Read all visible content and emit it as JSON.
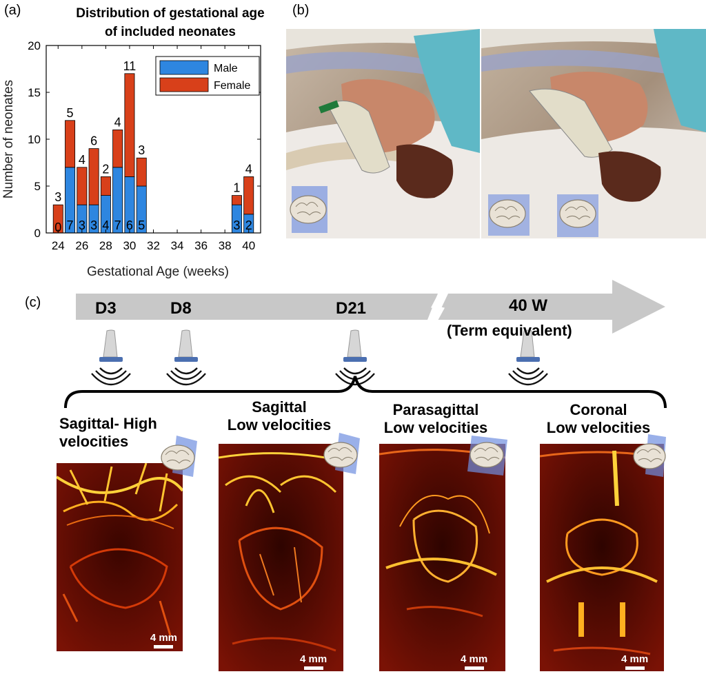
{
  "panel_a": {
    "letter": "(a)",
    "title_line1": "Distribution of gestational age",
    "title_line2": "of included neonates"
  },
  "panel_b": {
    "letter": "(b)"
  },
  "panel_c": {
    "letter": "(c)",
    "timeline": {
      "labels": [
        "D3",
        "D8",
        "D21",
        "40 W"
      ],
      "term_note": "(Term equivalent)"
    },
    "views": [
      {
        "title_line1": "Sagittal- High",
        "title_line2": "velocities",
        "scale": "4 mm"
      },
      {
        "title_line1": "Sagittal",
        "title_line2": "Low velocities",
        "scale": "4 mm"
      },
      {
        "title_line1": "Parasagittal",
        "title_line2": "Low velocities",
        "scale": "4 mm"
      },
      {
        "title_line1": "Coronal",
        "title_line2": "Low velocities",
        "scale": "4 mm"
      }
    ]
  },
  "chart_data": {
    "type": "bar",
    "stacked": true,
    "title": "Distribution of gestational age of included neonates",
    "xlabel": "Gestational Age (weeks)",
    "ylabel": "Number of neonates",
    "xlim": [
      23,
      41
    ],
    "ylim": [
      0,
      20
    ],
    "xticks": [
      24,
      26,
      28,
      30,
      32,
      34,
      36,
      38,
      40
    ],
    "yticks": [
      0,
      5,
      10,
      15,
      20
    ],
    "legend_position": "top-right",
    "x": [
      24,
      25,
      26,
      27,
      28,
      29,
      30,
      31,
      39,
      40
    ],
    "series": [
      {
        "name": "Male",
        "color": "#2e86e0",
        "values": [
          0,
          7,
          3,
          3,
          4,
          7,
          6,
          5,
          3,
          2
        ]
      },
      {
        "name": "Female",
        "color": "#d8401a",
        "values": [
          3,
          5,
          4,
          6,
          2,
          4,
          11,
          3,
          1,
          4
        ]
      }
    ],
    "male_labels": [
      "0",
      "7",
      "3",
      "3",
      "4",
      "7",
      "6",
      "5",
      "3",
      "2"
    ],
    "female_labels": [
      "3",
      "5",
      "4",
      "6",
      "2",
      "4",
      "11",
      "3",
      "1",
      "4"
    ]
  }
}
